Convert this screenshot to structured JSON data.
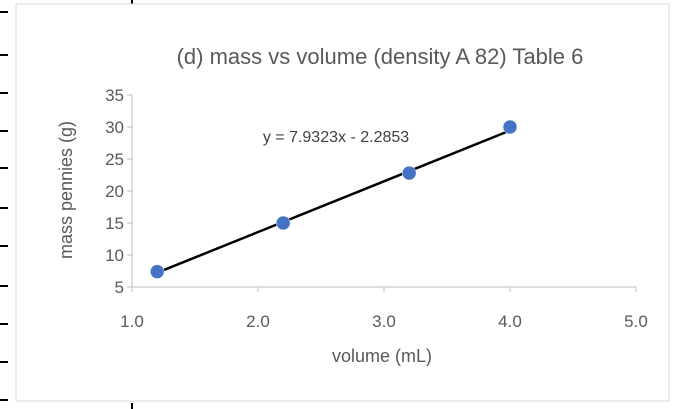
{
  "chart_data": {
    "type": "scatter",
    "title": "(d) mass vs volume (density A 82) Table 6",
    "xlabel": "volume (mL)",
    "ylabel": "mass pennies (g)",
    "xlim": [
      1.0,
      5.0
    ],
    "ylim": [
      5,
      35
    ],
    "x_ticks": [
      "1.0",
      "2.0",
      "3.0",
      "4.0",
      "5.0"
    ],
    "y_ticks": [
      "5",
      "10",
      "15",
      "20",
      "25",
      "30",
      "35"
    ],
    "grid": false,
    "legend": "none",
    "series": [
      {
        "x": [
          1.2,
          2.2,
          3.2,
          4.0
        ],
        "y": [
          7.4,
          15.0,
          22.8,
          30.0
        ]
      }
    ],
    "trendline": {
      "type": "linear",
      "slope": 7.9323,
      "intercept": -2.2853,
      "x_range": [
        1.2,
        4.0
      ],
      "equation_label": "y = 7.9323x - 2.2853"
    },
    "colors": {
      "marker": "#4472C4",
      "trendline": "#000000",
      "axis": "#bfbfbf",
      "text": "#595959"
    }
  }
}
